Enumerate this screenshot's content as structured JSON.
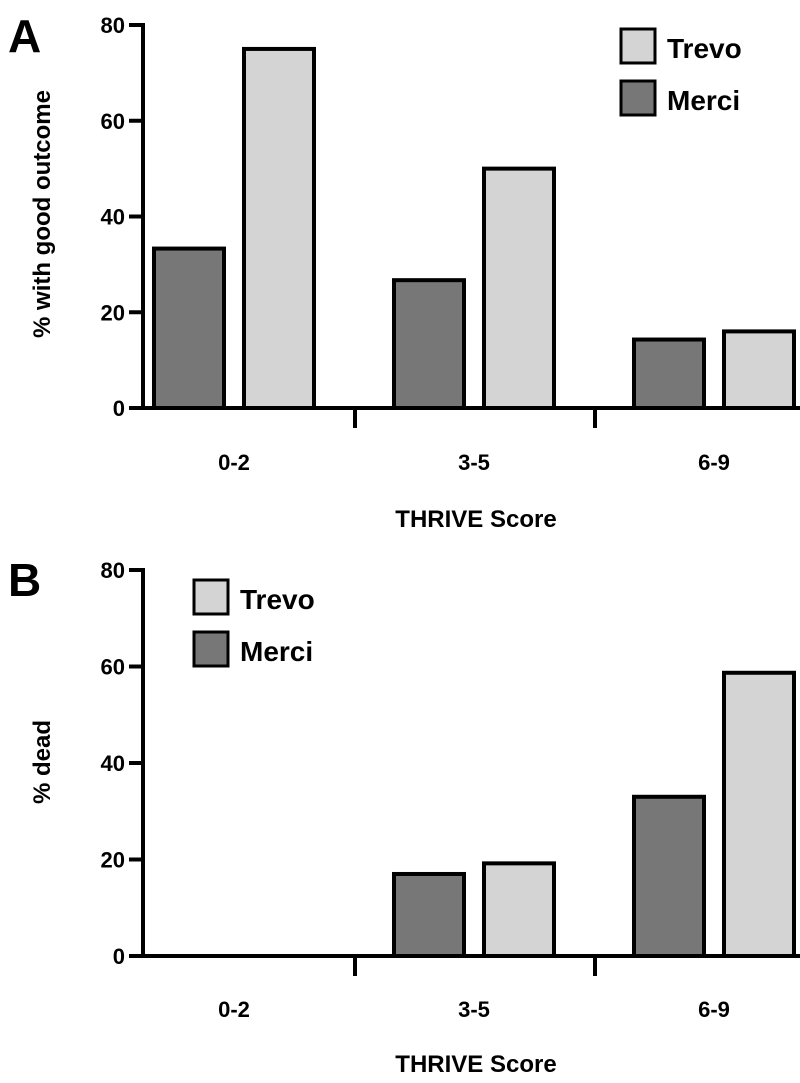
{
  "chart_data": [
    {
      "panel": "A",
      "type": "bar",
      "ylabel": "% with good outcome",
      "xlabel": "THRIVE Score",
      "ylim": [
        0,
        80
      ],
      "yticks": [
        "0",
        "20",
        "40",
        "60",
        "80"
      ],
      "categories": [
        "0-2",
        "3-5",
        "6-9"
      ],
      "legend_position": "top-right",
      "legend": [
        {
          "name": "Trevo",
          "color": "#d4d4d4"
        },
        {
          "name": "Merci",
          "color": "#777777"
        }
      ],
      "series": [
        {
          "name": "Merci",
          "color": "#777777",
          "values": [
            33.3,
            26.7,
            14.3
          ]
        },
        {
          "name": "Trevo",
          "color": "#d4d4d4",
          "values": [
            75.0,
            50.0,
            16.0
          ]
        }
      ]
    },
    {
      "panel": "B",
      "type": "bar",
      "ylabel": "% dead",
      "xlabel": "THRIVE Score",
      "ylim": [
        0,
        80
      ],
      "yticks": [
        "0",
        "20",
        "40",
        "60",
        "80"
      ],
      "categories": [
        "0-2",
        "3-5",
        "6-9"
      ],
      "legend_position": "top-left",
      "legend": [
        {
          "name": "Trevo",
          "color": "#d4d4d4"
        },
        {
          "name": "Merci",
          "color": "#777777"
        }
      ],
      "series": [
        {
          "name": "Merci",
          "color": "#777777",
          "values": [
            0,
            17.0,
            33.0
          ]
        },
        {
          "name": "Trevo",
          "color": "#d4d4d4",
          "values": [
            0,
            19.2,
            58.7
          ]
        }
      ]
    }
  ]
}
